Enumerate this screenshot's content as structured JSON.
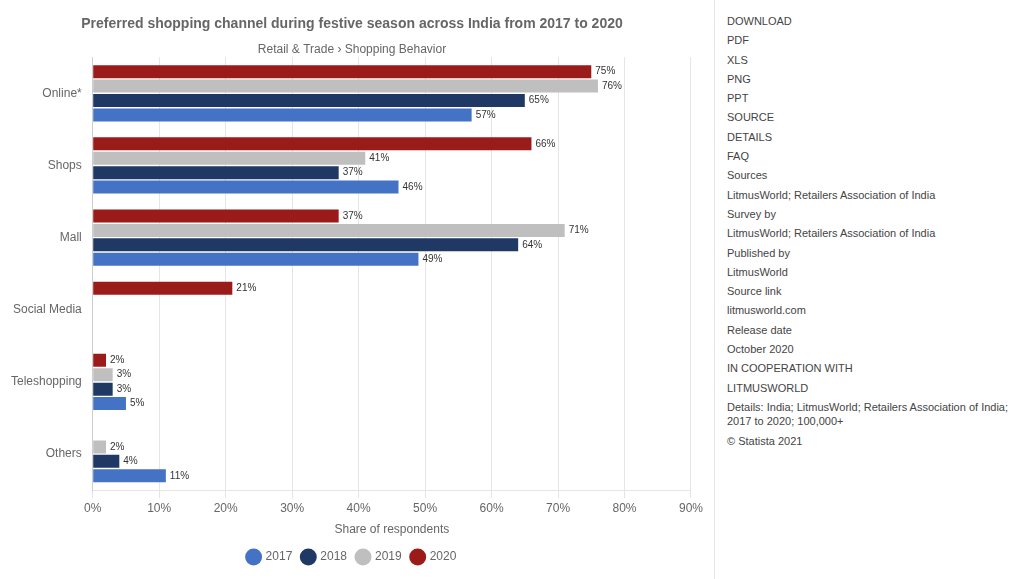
{
  "chart_data": {
    "type": "bar",
    "orientation": "horizontal",
    "title": "Preferred shopping channel during festive season across India from 2017 to 2020",
    "subtitle": "Retail & Trade › Shopping Behavior",
    "xlabel": "Share of respondents",
    "categories": [
      "Online*",
      "Shops",
      "Mall",
      "Social Media",
      "Teleshopping",
      "Others"
    ],
    "series": [
      {
        "name": "2017",
        "color": "#4472C4",
        "values": [
          57,
          46,
          49,
          null,
          5,
          11
        ],
        "value_labels": [
          "57%",
          "46%",
          "49%",
          null,
          "5%",
          "11%"
        ]
      },
      {
        "name": "2018",
        "color": "#1F3864",
        "values": [
          65,
          37,
          64,
          null,
          3,
          4
        ],
        "value_labels": [
          "65%",
          "37%",
          "64%",
          null,
          "3%",
          "4%"
        ]
      },
      {
        "name": "2019",
        "color": "#BFBFBF",
        "values": [
          76,
          41,
          71,
          null,
          3,
          2
        ],
        "value_labels": [
          "76%",
          "41%",
          "71%",
          null,
          "3%",
          "2%"
        ]
      },
      {
        "name": "2020",
        "color": "#9B1B1B",
        "values": [
          75,
          66,
          37,
          21,
          2,
          null
        ],
        "value_labels": [
          "75%",
          "66%",
          "37%",
          "21%",
          "2%",
          null
        ]
      }
    ],
    "xlim": [
      0,
      90
    ],
    "xticks": [
      {
        "value": 0,
        "label": "0%"
      },
      {
        "value": 10,
        "label": "10%"
      },
      {
        "value": 20,
        "label": "20%"
      },
      {
        "value": 30,
        "label": "30%"
      },
      {
        "value": 40,
        "label": "40%"
      },
      {
        "value": 50,
        "label": "50%"
      },
      {
        "value": 60,
        "label": "60%"
      },
      {
        "value": 70,
        "label": "70%"
      },
      {
        "value": 80,
        "label": "80%"
      },
      {
        "value": 90,
        "label": "90%"
      }
    ],
    "grid": true,
    "legend": "bottom",
    "data_labels": true,
    "annotations": [
      "DOWNLOAD",
      "PDF",
      "XLS",
      "PNG",
      "PPT",
      "SOURCE",
      "DETAILS",
      "FAQ",
      "Sources",
      "LitmusWorld; Retailers Association of India",
      "Survey by",
      "LitmusWorld; Retailers Association of India",
      "Published by",
      "LitmusWorld",
      "Source link",
      "litmusworld.com",
      "Release date",
      "October 2020",
      "IN COOPERATION WITH",
      "LITMUSWORLD",
      "Details: India; LitmusWorld; Retailers Association of India; 2017 to 2020; 100,000+",
      "© Statista 2021"
    ]
  }
}
